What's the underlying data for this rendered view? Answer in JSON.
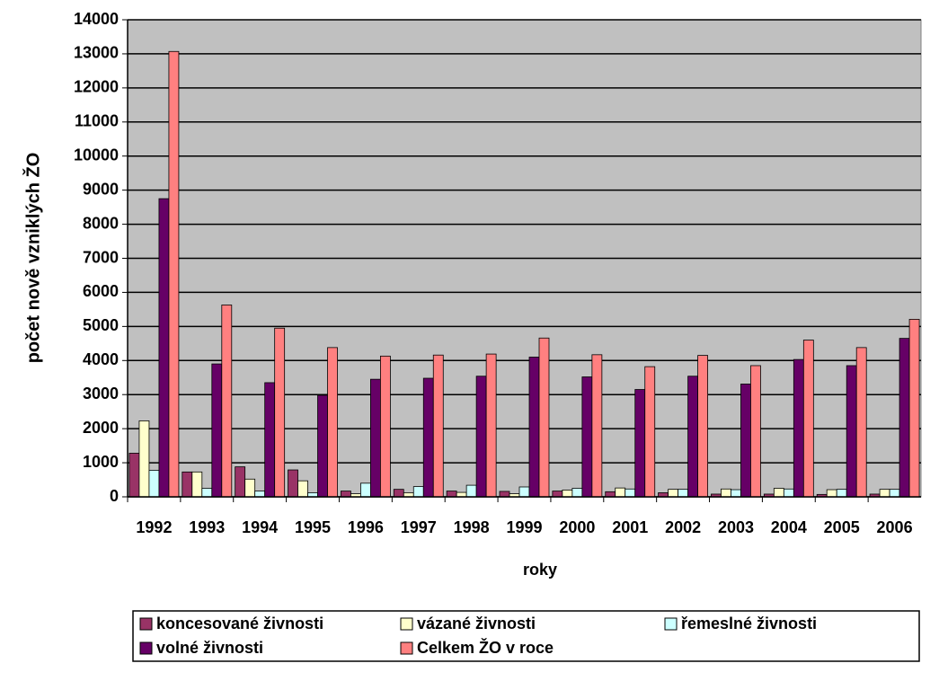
{
  "chart_data": {
    "type": "bar",
    "x_label": "roky",
    "y_label": "počet nově vzniklých ŽO",
    "categories": [
      "1992",
      "1993",
      "1994",
      "1995",
      "1996",
      "1997",
      "1998",
      "1999",
      "2000",
      "2001",
      "2002",
      "2003",
      "2004",
      "2005",
      "2006"
    ],
    "series": [
      {
        "name": "koncesované živnosti",
        "color": "#993366",
        "values": [
          1280,
          730,
          880,
          790,
          170,
          220,
          170,
          160,
          170,
          150,
          120,
          80,
          80,
          70,
          80
        ]
      },
      {
        "name": "vázané živnosti",
        "color": "#ffffcc",
        "values": [
          2230,
          730,
          520,
          470,
          90,
          120,
          130,
          90,
          200,
          260,
          220,
          230,
          250,
          210,
          220
        ]
      },
      {
        "name": "řemeslné živnosti",
        "color": "#ccffff",
        "values": [
          780,
          250,
          170,
          120,
          400,
          300,
          340,
          290,
          250,
          230,
          220,
          210,
          230,
          220,
          220
        ]
      },
      {
        "name": "volné živnosti",
        "color": "#660066",
        "values": [
          8750,
          3900,
          3350,
          2980,
          3450,
          3480,
          3540,
          4100,
          3520,
          3150,
          3540,
          3310,
          4030,
          3850,
          4650
        ]
      },
      {
        "name": "Celkem ŽO v roce",
        "color": "#ff8080",
        "values": [
          13070,
          5630,
          4950,
          4380,
          4130,
          4160,
          4190,
          4660,
          4170,
          3820,
          4150,
          3850,
          4600,
          4380,
          5210
        ]
      }
    ],
    "ylim": [
      0,
      14000
    ],
    "yticks": [
      0,
      1000,
      2000,
      3000,
      4000,
      5000,
      6000,
      7000,
      8000,
      9000,
      10000,
      11000,
      12000,
      13000,
      14000
    ],
    "grid": true,
    "plot_background": "#c0c0c0",
    "legend": "bottom"
  }
}
